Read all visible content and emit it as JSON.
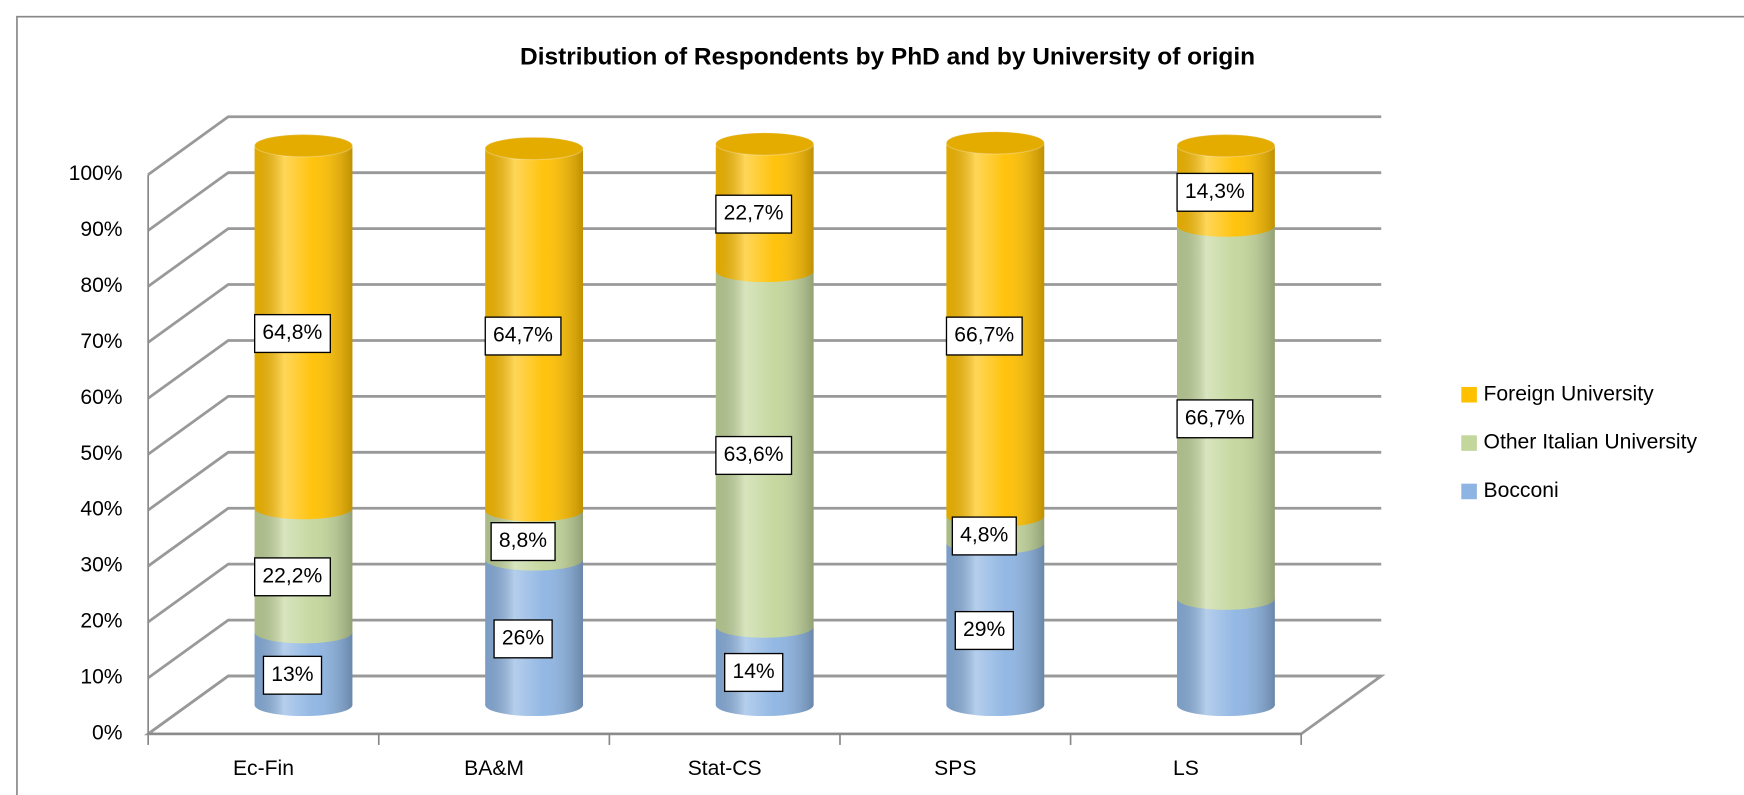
{
  "chart_data": {
    "type": "bar3d_stacked",
    "title": "Distribution of Respondents by PhD and by University of origin",
    "categories": [
      "Ec-Fin",
      "BA&M",
      "Stat-CS",
      "SPS",
      "LS"
    ],
    "series": [
      {
        "name": "Bocconi",
        "color": "#8db4e2",
        "values": [
          13,
          26,
          14,
          29,
          19
        ],
        "value_labels": [
          "13%",
          "26%",
          "14%",
          "29%",
          null
        ]
      },
      {
        "name": "Other Italian University",
        "color": "#c3d69b",
        "values": [
          22.2,
          8.8,
          63.6,
          4.8,
          66.7
        ],
        "value_labels": [
          "22,2%",
          "8,8%",
          "63,6%",
          "4,8%",
          "66,7%"
        ]
      },
      {
        "name": "Foreign University",
        "color": "#ffc000",
        "values": [
          64.8,
          64.7,
          22.7,
          66.7,
          14.3
        ],
        "value_labels": [
          "64,8%",
          "64,7%",
          "22,7%",
          "66,7%",
          "14,3%"
        ]
      }
    ],
    "ylim": [
      0,
      100
    ],
    "yticks": [
      {
        "value": 0,
        "label": "0%"
      },
      {
        "value": 10,
        "label": "10%"
      },
      {
        "value": 20,
        "label": "20%"
      },
      {
        "value": 30,
        "label": "30%"
      },
      {
        "value": 40,
        "label": "40%"
      },
      {
        "value": 50,
        "label": "50%"
      },
      {
        "value": 60,
        "label": "60%"
      },
      {
        "value": 70,
        "label": "70%"
      },
      {
        "value": 80,
        "label": "80%"
      },
      {
        "value": 90,
        "label": "90%"
      },
      {
        "value": 100,
        "label": "100%"
      }
    ],
    "grid": true,
    "legend": "right"
  }
}
